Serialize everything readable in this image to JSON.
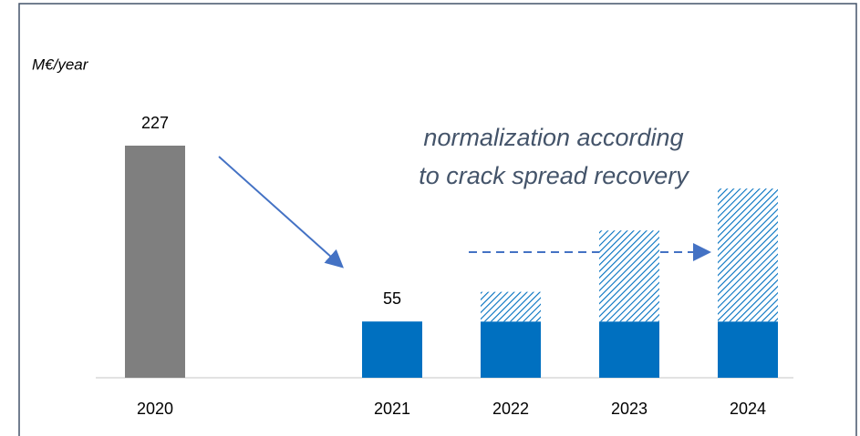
{
  "chart_data": {
    "type": "bar",
    "stacked": true,
    "y_label": "M€/year",
    "annotation": [
      "normalization according",
      "to crack spread recovery"
    ],
    "categories": [
      "2020",
      null,
      "2021",
      "2022",
      "2023",
      "2024"
    ],
    "series": [
      {
        "colors": [
          "#7f7f7f",
          null,
          "#0070c0",
          "#0070c0",
          "#0070c0",
          "#0070c0"
        ],
        "values": [
          227,
          null,
          55,
          55,
          55,
          55
        ],
        "value_labels": [
          "227",
          null,
          "55",
          null,
          null,
          null
        ]
      },
      {
        "color": "#0070c0",
        "pattern": "hatch",
        "values": [
          null,
          null,
          null,
          29,
          89,
          130
        ]
      }
    ],
    "ylim": [
      0,
      240
    ]
  }
}
